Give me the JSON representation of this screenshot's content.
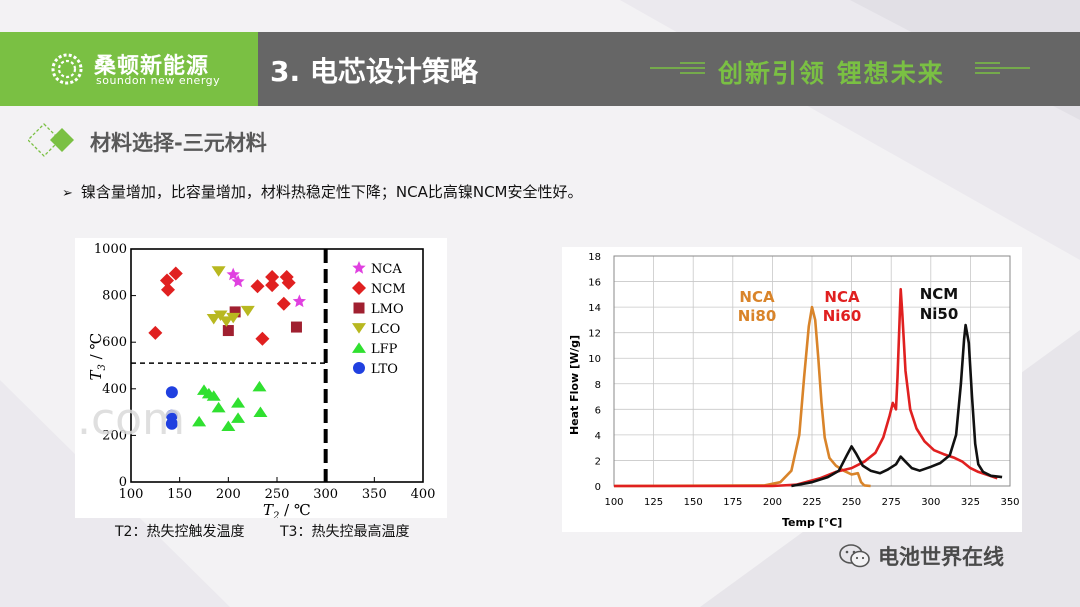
{
  "header": {
    "logo_cn": "桑顿新能源",
    "logo_en": "soundon new energy",
    "title": "3. 电芯设计策略",
    "slogan": "创新引领  锂想未来"
  },
  "section": {
    "title": "材料选择-三元材料"
  },
  "bullet": {
    "marker": "➢",
    "text": "镍含量增加，比容量增加，材料热稳定性下降；NCA比高镍NCM安全性好。"
  },
  "caption": {
    "t2": "T2：热失控触发温度",
    "t3": "T3：热失控最高温度"
  },
  "watermark": {
    "text": "电池世界在线",
    "overlay": ".com"
  },
  "chart_data": [
    {
      "type": "scatter",
      "xlabel_main": "T",
      "xlabel_sub": "2",
      "xlabel_unit": " / ℃",
      "ylabel_main": "T",
      "ylabel_sub": "3",
      "ylabel_unit": " / ℃",
      "xlim": [
        100,
        400
      ],
      "ylim": [
        0,
        1000
      ],
      "xticks": [
        100,
        150,
        200,
        250,
        300,
        350,
        400
      ],
      "yticks": [
        0,
        200,
        400,
        600,
        800,
        1000
      ],
      "hline": 510,
      "vline": 300,
      "series": [
        {
          "name": "NCA",
          "color": "#e040e0",
          "marker": "star",
          "points": [
            [
              205,
              890
            ],
            [
              210,
              860
            ],
            [
              273,
              775
            ]
          ]
        },
        {
          "name": "NCM",
          "color": "#e02020",
          "marker": "diamond",
          "points": [
            [
              125,
              640
            ],
            [
              137,
              865
            ],
            [
              138,
              825
            ],
            [
              146,
              895
            ],
            [
              230,
              840
            ],
            [
              245,
              880
            ],
            [
              245,
              845
            ],
            [
              260,
              880
            ],
            [
              262,
              855
            ],
            [
              257,
              765
            ],
            [
              235,
              615
            ]
          ]
        },
        {
          "name": "LMO",
          "color": "#a02030",
          "marker": "square",
          "points": [
            [
              200,
              650
            ],
            [
              207,
              730
            ],
            [
              270,
              665
            ]
          ]
        },
        {
          "name": "LCO",
          "color": "#b8b820",
          "marker": "tri-down",
          "points": [
            [
              190,
              905
            ],
            [
              185,
              700
            ],
            [
              192,
              715
            ],
            [
              198,
              690
            ],
            [
              205,
              705
            ],
            [
              220,
              735
            ]
          ]
        },
        {
          "name": "LFP",
          "color": "#30e030",
          "marker": "tri-up",
          "points": [
            [
              175,
              395
            ],
            [
              180,
              380
            ],
            [
              185,
              370
            ],
            [
              190,
              320
            ],
            [
              170,
              260
            ],
            [
              210,
              340
            ],
            [
              200,
              240
            ],
            [
              210,
              275
            ],
            [
              232,
              410
            ],
            [
              233,
              300
            ]
          ]
        },
        {
          "name": "LTO",
          "color": "#2040e0",
          "marker": "circle",
          "points": [
            [
              142,
              385
            ],
            [
              142,
              285
            ],
            [
              142,
              250
            ]
          ]
        }
      ]
    },
    {
      "type": "line",
      "xlabel": "Temp [°C]",
      "ylabel": "Heat Flow [W/g]",
      "xlim": [
        100,
        350
      ],
      "ylim": [
        0,
        18
      ],
      "xticks": [
        100,
        125,
        150,
        175,
        200,
        225,
        250,
        275,
        300,
        325,
        350
      ],
      "yticks": [
        0,
        2,
        4,
        6,
        8,
        10,
        12,
        14,
        16,
        18
      ],
      "series": [
        {
          "name": "NCA\nNi80",
          "color": "#d9842a",
          "points": [
            [
              100,
              0
            ],
            [
              195,
              0.05
            ],
            [
              205,
              0.3
            ],
            [
              212,
              1.2
            ],
            [
              217,
              4
            ],
            [
              220,
              8.5
            ],
            [
              223,
              12.5
            ],
            [
              225,
              14
            ],
            [
              227,
              13
            ],
            [
              229,
              10
            ],
            [
              231,
              6.5
            ],
            [
              233,
              3.8
            ],
            [
              236,
              2.2
            ],
            [
              240,
              1.6
            ],
            [
              245,
              1.2
            ],
            [
              250,
              0.9
            ],
            [
              254,
              1.0
            ],
            [
              256,
              0.3
            ],
            [
              258,
              0.05
            ],
            [
              262,
              0
            ]
          ]
        },
        {
          "name": "NCA\nNi60",
          "color": "#e02020",
          "points": [
            [
              100,
              0
            ],
            [
              200,
              0
            ],
            [
              215,
              0.1
            ],
            [
              230,
              0.6
            ],
            [
              240,
              1.1
            ],
            [
              250,
              1.4
            ],
            [
              258,
              1.9
            ],
            [
              265,
              2.6
            ],
            [
              270,
              3.8
            ],
            [
              274,
              5.5
            ],
            [
              276,
              6.5
            ],
            [
              278,
              6.0
            ],
            [
              279,
              8.5
            ],
            [
              281,
              15.4
            ],
            [
              282,
              13.5
            ],
            [
              284,
              9
            ],
            [
              287,
              6
            ],
            [
              291,
              4.5
            ],
            [
              296,
              3.5
            ],
            [
              302,
              2.8
            ],
            [
              308,
              2.5
            ],
            [
              315,
              2.2
            ],
            [
              320,
              1.9
            ],
            [
              325,
              1.4
            ],
            [
              330,
              1.1
            ],
            [
              335,
              0.9
            ],
            [
              342,
              0.6
            ]
          ]
        },
        {
          "name": "NCM\nNi50",
          "color": "#111111",
          "points": [
            [
              212,
              0
            ],
            [
              225,
              0.3
            ],
            [
              235,
              0.7
            ],
            [
              242,
              1.2
            ],
            [
              247,
              2.4
            ],
            [
              250,
              3.1
            ],
            [
              253,
              2.5
            ],
            [
              257,
              1.6
            ],
            [
              262,
              1.2
            ],
            [
              268,
              1.0
            ],
            [
              273,
              1.3
            ],
            [
              278,
              1.7
            ],
            [
              281,
              2.3
            ],
            [
              284,
              1.9
            ],
            [
              288,
              1.4
            ],
            [
              293,
              1.2
            ],
            [
              300,
              1.5
            ],
            [
              306,
              1.8
            ],
            [
              312,
              2.4
            ],
            [
              316,
              4
            ],
            [
              319,
              8
            ],
            [
              321,
              11.5
            ],
            [
              322,
              12.6
            ],
            [
              324,
              11.2
            ],
            [
              326,
              7
            ],
            [
              328,
              3.3
            ],
            [
              330,
              1.7
            ],
            [
              333,
              1.1
            ],
            [
              338,
              0.8
            ],
            [
              345,
              0.7
            ]
          ]
        }
      ]
    }
  ]
}
